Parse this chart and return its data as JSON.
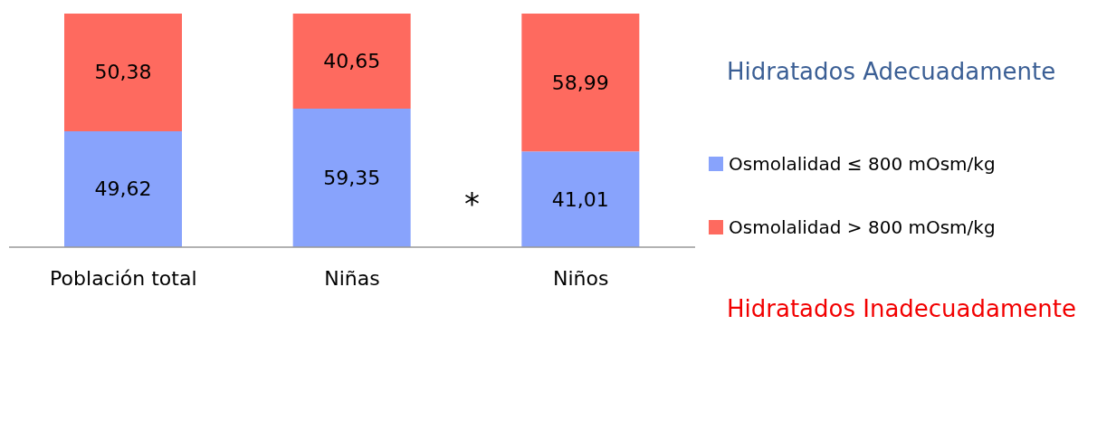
{
  "chart_data": {
    "type": "bar",
    "stacked": true,
    "categories": [
      "Población total",
      "Niñas",
      "Niños"
    ],
    "ylim": [
      0,
      100
    ],
    "legend": "right",
    "series": [
      {
        "name": "Osmolalidad ≤ 800 mOsm/kg",
        "color": "#88a3fc",
        "values": [
          49.62,
          59.35,
          41.01
        ],
        "value_labels": [
          "49,62",
          "59,35",
          "41,01"
        ]
      },
      {
        "name": "Osmolalidad > 800 mOsm/kg",
        "color": "#fe6a5f",
        "values": [
          50.38,
          40.65,
          58.99
        ],
        "value_labels": [
          "50,38",
          "40,65",
          "58,99"
        ]
      }
    ],
    "annotations": [
      "Hidratados Adecuadamente",
      "*",
      "Hidratados Inadecuadamente"
    ]
  }
}
